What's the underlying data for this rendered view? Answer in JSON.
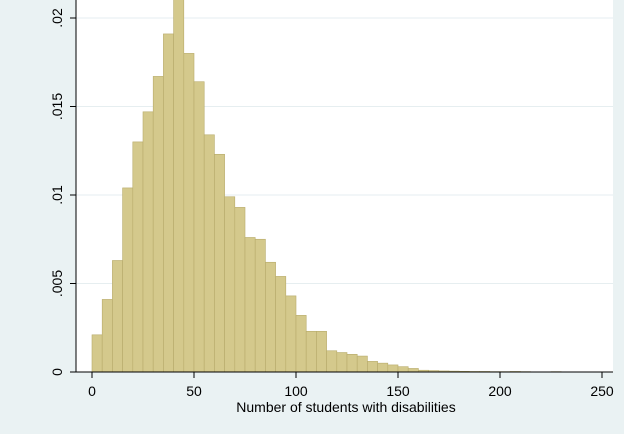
{
  "chart_data": {
    "type": "bar",
    "title": "",
    "xlabel": "Number of students with disabilities",
    "ylabel": "",
    "bin_width": 5,
    "x": [
      0,
      5,
      10,
      15,
      20,
      25,
      30,
      35,
      40,
      45,
      50,
      55,
      60,
      65,
      70,
      75,
      80,
      85,
      90,
      95,
      100,
      105,
      110,
      115,
      120,
      125,
      130,
      135,
      140,
      145,
      150,
      155,
      160,
      165,
      170,
      175,
      180,
      185,
      190,
      195,
      200,
      205,
      210,
      215,
      220,
      225,
      230,
      235,
      240,
      245
    ],
    "values": [
      0.0021,
      0.0041,
      0.0063,
      0.0104,
      0.013,
      0.0147,
      0.0167,
      0.0191,
      0.0214,
      0.018,
      0.0164,
      0.0134,
      0.0123,
      0.0099,
      0.0093,
      0.0076,
      0.0075,
      0.0062,
      0.0054,
      0.0043,
      0.0032,
      0.0023,
      0.0023,
      0.0012,
      0.0011,
      0.001,
      0.0009,
      0.0006,
      0.0005,
      0.0004,
      0.0003,
      0.0002,
      0.0001,
      8e-05,
      6e-05,
      5e-05,
      4e-05,
      3e-05,
      3e-05,
      2e-05,
      2e-05,
      3e-05,
      2e-05,
      1e-05,
      1e-05,
      2e-05,
      1e-05,
      1e-05,
      1e-05,
      1e-05
    ],
    "xlim": [
      0,
      250
    ],
    "ylim": [
      0,
      0.02
    ],
    "xticks": [
      0,
      50,
      100,
      150,
      200,
      250
    ],
    "xtick_labels": [
      "0",
      "50",
      "100",
      "150",
      "200",
      "250"
    ],
    "yticks": [
      0,
      0.005,
      0.01,
      0.015,
      0.02
    ],
    "ytick_labels": [
      "0",
      ".005",
      ".01",
      ".015",
      ".02"
    ],
    "grid": "horizontal",
    "colors": {
      "bar_fill": "#d4c98c",
      "bar_stroke": "#b7ab6a",
      "plot_background": "#ffffff",
      "outer_background": "#eaf2f3",
      "grid": "#e6eef0",
      "axis": "#000000"
    }
  }
}
